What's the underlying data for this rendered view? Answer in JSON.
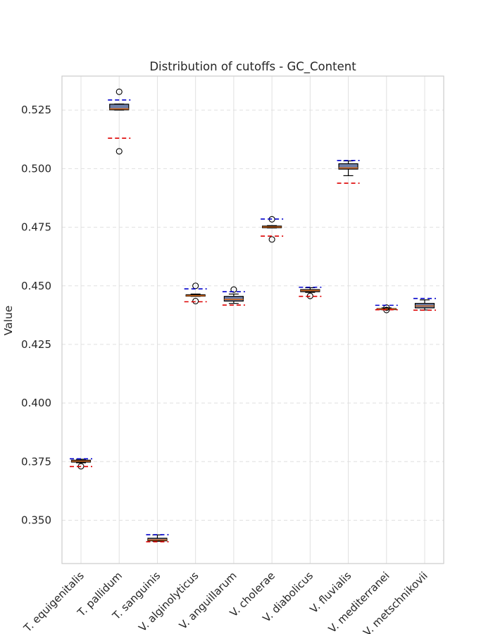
{
  "chart_data": {
    "type": "box",
    "title": "Distribution of cutoffs - GC_Content",
    "xlabel": "",
    "ylabel": "Value",
    "ylim": [
      0.3315,
      0.5395
    ],
    "yticks": [
      "0.350",
      "0.375",
      "0.400",
      "0.425",
      "0.450",
      "0.475",
      "0.500",
      "0.525"
    ],
    "grid": true,
    "categories": [
      "T. equigenitalis",
      "T. pallidum",
      "T. sanguinis",
      "V. alginolyticus",
      "V. anguillarum",
      "V. cholerae",
      "V. diabolicus",
      "V. fluvialis",
      "V. mediterranei",
      "V. metschnikovii"
    ],
    "boxes": [
      {
        "whislo": 0.3745,
        "q1": 0.3748,
        "med": 0.3752,
        "q3": 0.3756,
        "whishi": 0.376,
        "fliers": [
          0.373
        ]
      },
      {
        "whislo": 0.525,
        "q1": 0.5251,
        "med": 0.5255,
        "q3": 0.5275,
        "whishi": 0.5276,
        "fliers": [
          0.5328,
          0.5074
        ]
      },
      {
        "whislo": 0.341,
        "q1": 0.3412,
        "med": 0.3416,
        "q3": 0.3423,
        "whishi": 0.3437,
        "fliers": []
      },
      {
        "whislo": 0.4455,
        "q1": 0.4456,
        "med": 0.4458,
        "q3": 0.4462,
        "whishi": 0.4465,
        "fliers": [
          0.45,
          0.4435
        ]
      },
      {
        "whislo": 0.4425,
        "q1": 0.4435,
        "med": 0.4442,
        "q3": 0.4455,
        "whishi": 0.4465,
        "fliers": [
          0.4484
        ]
      },
      {
        "whislo": 0.4747,
        "q1": 0.4748,
        "med": 0.4751,
        "q3": 0.4755,
        "whishi": 0.4757,
        "fliers": [
          0.4784,
          0.4698
        ]
      },
      {
        "whislo": 0.4472,
        "q1": 0.4475,
        "med": 0.448,
        "q3": 0.4484,
        "whishi": 0.4492,
        "fliers": [
          0.4457
        ]
      },
      {
        "whislo": 0.497,
        "q1": 0.4998,
        "med": 0.5003,
        "q3": 0.5021,
        "whishi": 0.5033,
        "fliers": []
      },
      {
        "whislo": 0.4398,
        "q1": 0.4399,
        "med": 0.4401,
        "q3": 0.4403,
        "whishi": 0.4406,
        "fliers": [
          0.4407,
          0.4397
        ]
      },
      {
        "whislo": 0.4397,
        "q1": 0.4406,
        "med": 0.4414,
        "q3": 0.4425,
        "whishi": 0.444,
        "fliers": []
      }
    ],
    "upper_cutoffs": [
      0.3762,
      0.5293,
      0.3438,
      0.4487,
      0.4475,
      0.4785,
      0.4494,
      0.5035,
      0.4417,
      0.4446
    ],
    "lower_cutoffs": [
      0.3729,
      0.513,
      0.3408,
      0.4432,
      0.4418,
      0.4712,
      0.4455,
      0.4938,
      0.4398,
      0.4396
    ],
    "colors": {
      "box_fill": "#6f7fa8",
      "box_edge": "#000000",
      "median": "#d2691e",
      "upper_cutoff": "#0000cc",
      "lower_cutoff": "#dd0000",
      "grid": "#e0e0e0",
      "spine": "#cccccc"
    }
  }
}
